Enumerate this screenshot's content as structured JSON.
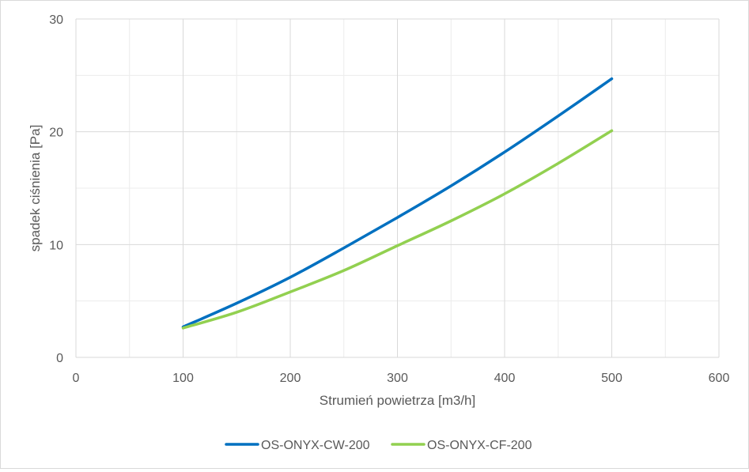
{
  "chart_data": {
    "type": "line",
    "xlabel": "Strumień powietrza [m3/h]",
    "ylabel": "spadek ciśnienia [Pa]",
    "xlim": [
      0,
      600
    ],
    "ylim": [
      0,
      30
    ],
    "x_ticks": [
      0,
      100,
      200,
      300,
      400,
      500,
      600
    ],
    "y_ticks": [
      0,
      10,
      20,
      30
    ],
    "x_tick_labels": [
      "0",
      "100",
      "200",
      "300",
      "400",
      "500",
      "600"
    ],
    "y_tick_labels": [
      "0",
      "10",
      "20",
      "30"
    ],
    "grid": true,
    "legend": "bottom",
    "series": [
      {
        "name": "OS-ONYX-CW-200",
        "color": "#0070c0",
        "x": [
          100,
          150,
          200,
          250,
          300,
          350,
          400,
          450,
          500
        ],
        "y": [
          2.7,
          4.8,
          7.1,
          9.7,
          12.4,
          15.2,
          18.2,
          21.4,
          24.7
        ]
      },
      {
        "name": "OS-ONYX-CF-200",
        "color": "#92d050",
        "x": [
          100,
          150,
          200,
          250,
          300,
          350,
          400,
          450,
          500
        ],
        "y": [
          2.6,
          4.0,
          5.8,
          7.7,
          9.9,
          12.1,
          14.5,
          17.2,
          20.1
        ]
      }
    ]
  }
}
